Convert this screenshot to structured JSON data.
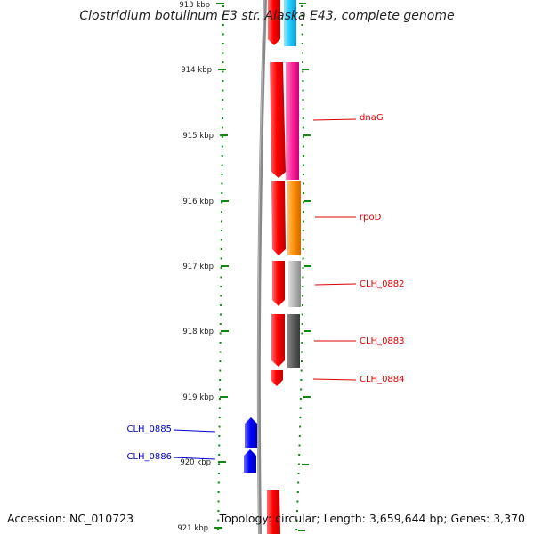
{
  "title": "Clostridium botulinum E3 str. Alaska E43, complete genome",
  "footer": {
    "accession": "Accession: NC_010723",
    "topology": "Topology: circular; Length: 3,659,644 bp; Genes: 3,370"
  },
  "ruler": [
    "913 kbp",
    "914 kbp",
    "915 kbp",
    "916 kbp",
    "917 kbp",
    "918 kbp",
    "919 kbp",
    "920 kbp",
    "921 kbp"
  ],
  "gene_labels": {
    "right": [
      "dnaG",
      "rpoD",
      "CLH_0882",
      "CLH_0883",
      "CLH_0884"
    ],
    "left": [
      "CLH_0885",
      "CLH_0886"
    ]
  },
  "colors": {
    "red": "#ff0000",
    "blue": "#0000ff",
    "cyan": "#1ec8ff",
    "magenta": "#ff2299",
    "orange": "#ff8c00",
    "lightgray": "#b4b4b4",
    "darkgray": "#5a5a5a",
    "backbone": "#808080",
    "tick": "#118811"
  }
}
